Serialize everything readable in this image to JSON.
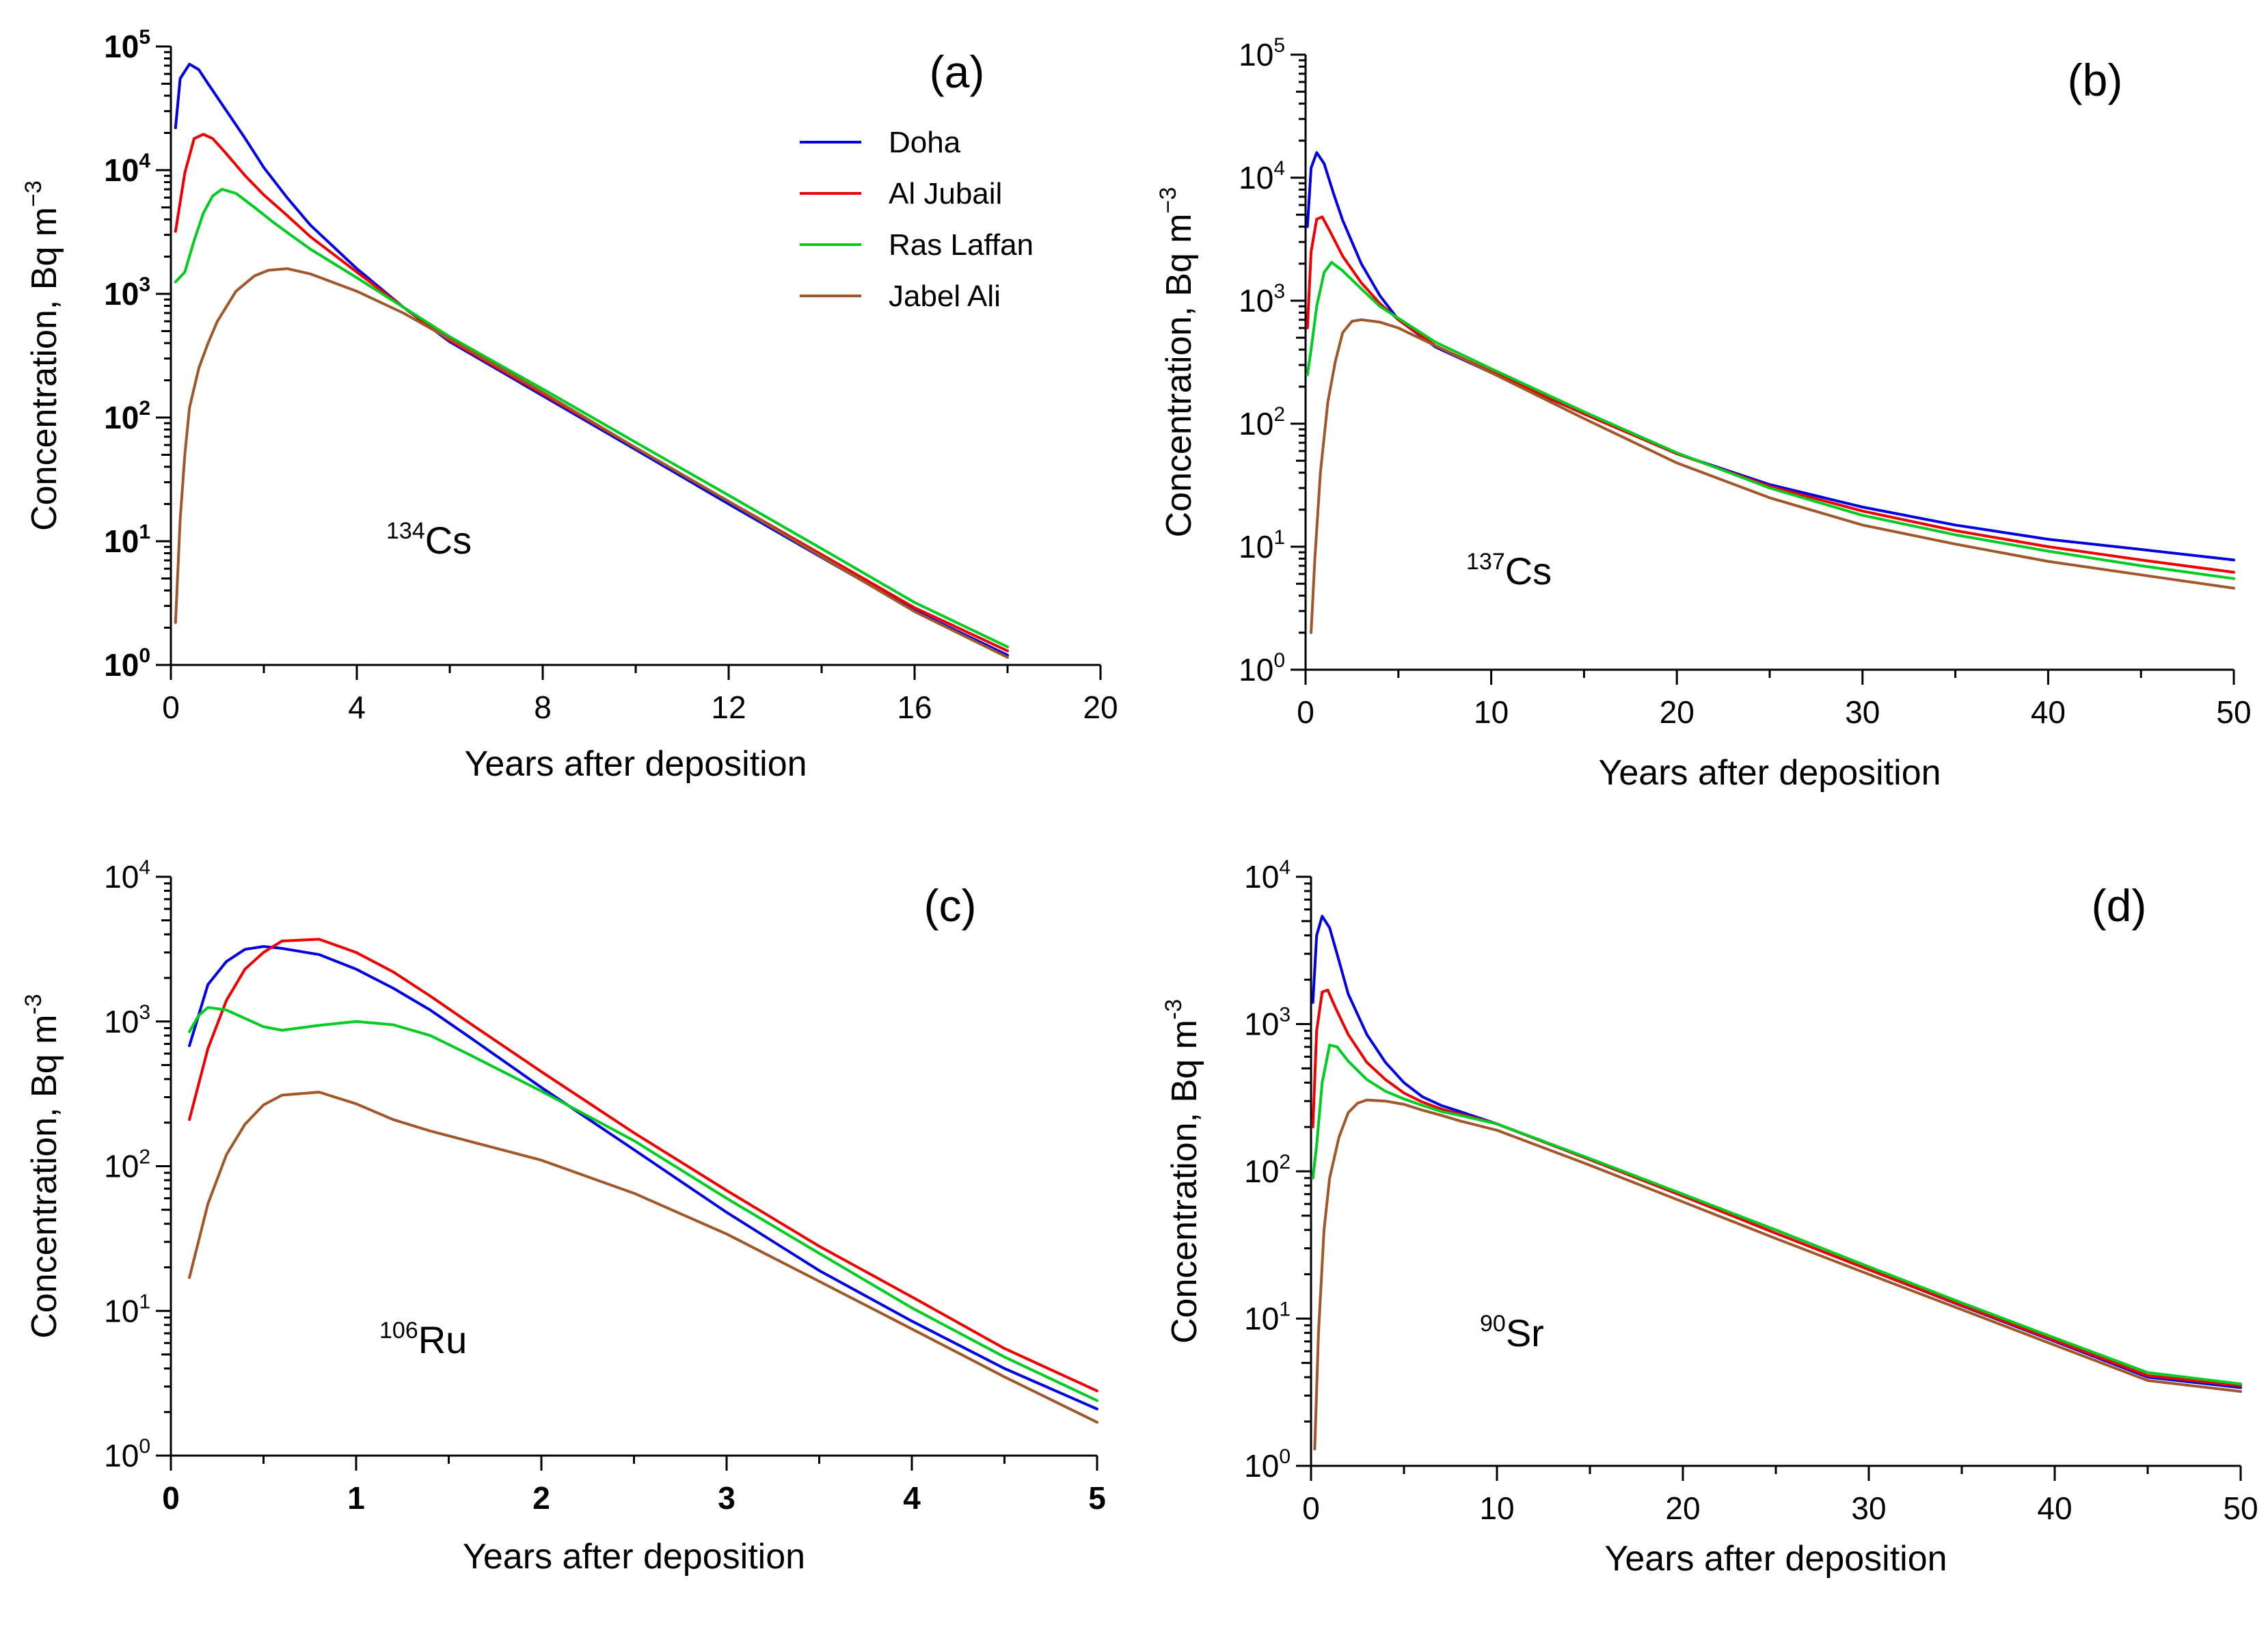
{
  "legend": [
    "Doha",
    "Al Jubail",
    "Ras Laffan",
    "Jabel Ali"
  ],
  "colors": {
    "Doha": "#0000e0",
    "Al Jubail": "#ee0000",
    "Ras Laffan": "#00cc22",
    "Jabel Ali": "#a0572a"
  },
  "chart_data": [
    {
      "type": "line",
      "panel": "(a)",
      "isotope_mass": "134",
      "isotope_symbol": "Cs",
      "xlabel": "Years after deposition",
      "ylabel": "Concentration, Bq m",
      "ylabel_sup": "−3",
      "xlim": [
        0,
        20
      ],
      "xticks": [
        0,
        4,
        8,
        12,
        16,
        20
      ],
      "ylog": true,
      "ylim": [
        1,
        100000
      ],
      "series": [
        {
          "name": "Doha",
          "x": [
            0.1,
            0.2,
            0.4,
            0.6,
            0.8,
            1.2,
            1.6,
            2.0,
            2.5,
            3,
            4,
            5,
            6,
            8,
            10,
            12,
            14,
            16,
            18
          ],
          "y": [
            22000,
            55000,
            72000,
            65000,
            50000,
            30000,
            18000,
            10500,
            6000,
            3600,
            1600,
            780,
            410,
            150,
            55,
            20,
            7.4,
            2.75,
            1.2
          ]
        },
        {
          "name": "Al Jubail",
          "x": [
            0.1,
            0.3,
            0.5,
            0.7,
            0.9,
            1.2,
            1.6,
            2.0,
            2.5,
            3,
            4,
            5,
            6,
            8,
            10,
            12,
            14,
            16,
            18
          ],
          "y": [
            3200,
            9500,
            18000,
            19500,
            18000,
            13500,
            9000,
            6300,
            4300,
            2900,
            1500,
            780,
            420,
            155,
            57,
            21,
            7.8,
            2.9,
            1.3
          ]
        },
        {
          "name": "Ras Laffan",
          "x": [
            0.1,
            0.3,
            0.5,
            0.7,
            0.9,
            1.1,
            1.4,
            1.8,
            2.2,
            2.6,
            3,
            4,
            5,
            6,
            8,
            10,
            12,
            14,
            16,
            18
          ],
          "y": [
            1250,
            1500,
            2700,
            4500,
            6200,
            7000,
            6500,
            5000,
            3800,
            2950,
            2300,
            1350,
            780,
            450,
            170,
            63,
            23.5,
            8.7,
            3.2,
            1.4
          ]
        },
        {
          "name": "Jabel Ali",
          "x": [
            0.1,
            0.2,
            0.3,
            0.4,
            0.6,
            0.8,
            1.0,
            1.4,
            1.8,
            2.1,
            2.5,
            3,
            4,
            5,
            6,
            8,
            10,
            12,
            14,
            16,
            18
          ],
          "y": [
            2.2,
            15,
            50,
            120,
            250,
            400,
            600,
            1050,
            1400,
            1550,
            1600,
            1450,
            1050,
            700,
            430,
            160,
            57,
            21,
            7.5,
            2.7,
            1.15
          ]
        }
      ]
    },
    {
      "type": "line",
      "panel": "(b)",
      "isotope_mass": "137",
      "isotope_symbol": "Cs",
      "xlabel": "Years after deposition",
      "ylabel": "Concentration, Bq m",
      "ylabel_sup": "−3",
      "xlim": [
        0,
        50
      ],
      "xticks": [
        0,
        10,
        20,
        30,
        40,
        50
      ],
      "ylog": true,
      "ylim": [
        1,
        100000
      ],
      "series": [
        {
          "name": "Doha",
          "x": [
            0.1,
            0.3,
            0.6,
            1.0,
            1.5,
            2,
            3,
            4,
            5,
            7,
            10,
            15,
            20,
            25,
            30,
            35,
            40,
            45,
            50
          ],
          "y": [
            4000,
            12000,
            16000,
            13000,
            7500,
            4500,
            2000,
            1100,
            700,
            420,
            260,
            120,
            57,
            32,
            21,
            15,
            11.5,
            9.5,
            7.8
          ]
        },
        {
          "name": "Al Jubail",
          "x": [
            0.1,
            0.3,
            0.6,
            0.9,
            1.3,
            2,
            3,
            4,
            5,
            7,
            10,
            15,
            20,
            25,
            30,
            35,
            40,
            45,
            50
          ],
          "y": [
            600,
            2500,
            4600,
            4800,
            3700,
            2300,
            1400,
            950,
            700,
            430,
            265,
            120,
            57,
            31,
            19.5,
            13.5,
            10,
            7.8,
            6.2
          ]
        },
        {
          "name": "Ras Laffan",
          "x": [
            0.1,
            0.3,
            0.6,
            1.0,
            1.4,
            2,
            3,
            4,
            5,
            7,
            10,
            15,
            20,
            25,
            30,
            35,
            40,
            45,
            50
          ],
          "y": [
            250,
            400,
            900,
            1700,
            2050,
            1750,
            1250,
            900,
            720,
            460,
            280,
            125,
            58,
            30,
            18,
            12.5,
            9.2,
            7,
            5.5
          ]
        },
        {
          "name": "Jabel Ali",
          "x": [
            0.3,
            0.5,
            0.8,
            1.2,
            1.6,
            2.0,
            2.5,
            3.0,
            4,
            5,
            7,
            10,
            15,
            20,
            25,
            30,
            35,
            40,
            45,
            50
          ],
          "y": [
            2.0,
            8,
            40,
            150,
            320,
            550,
            680,
            700,
            670,
            600,
            430,
            260,
            110,
            48,
            25,
            15,
            10.5,
            7.6,
            5.9,
            4.6
          ]
        }
      ]
    },
    {
      "type": "line",
      "panel": "(c)",
      "isotope_mass": "106",
      "isotope_symbol": "Ru",
      "xlabel": "Years after deposition",
      "ylabel": "Concentration, Bq m",
      "ylabel_sup": "-3",
      "xlim": [
        0,
        5
      ],
      "xticks": [
        0,
        1,
        2,
        3,
        4,
        5
      ],
      "ylog": true,
      "ylim": [
        1,
        10000
      ],
      "series": [
        {
          "name": "Doha",
          "x": [
            0.1,
            0.2,
            0.3,
            0.4,
            0.5,
            0.6,
            0.8,
            1.0,
            1.2,
            1.4,
            1.6,
            2.0,
            2.5,
            3.0,
            3.5,
            4.0,
            4.5,
            5.0
          ],
          "y": [
            680,
            1800,
            2600,
            3150,
            3300,
            3200,
            2900,
            2300,
            1700,
            1200,
            800,
            350,
            130,
            48,
            19,
            8.5,
            4,
            2.1
          ]
        },
        {
          "name": "Al Jubail",
          "x": [
            0.1,
            0.2,
            0.3,
            0.4,
            0.5,
            0.6,
            0.8,
            1.0,
            1.2,
            1.4,
            1.6,
            2.0,
            2.5,
            3.0,
            3.5,
            4.0,
            4.5,
            5.0
          ],
          "y": [
            210,
            650,
            1400,
            2300,
            3000,
            3600,
            3700,
            3000,
            2200,
            1500,
            1000,
            450,
            170,
            68,
            28,
            12.5,
            5.5,
            2.8
          ]
        },
        {
          "name": "Ras Laffan",
          "x": [
            0.1,
            0.15,
            0.2,
            0.3,
            0.4,
            0.5,
            0.6,
            0.8,
            1.0,
            1.2,
            1.4,
            1.6,
            2.0,
            2.5,
            3.0,
            3.5,
            4.0,
            4.5,
            5.0
          ],
          "y": [
            850,
            1100,
            1250,
            1200,
            1050,
            920,
            870,
            940,
            1000,
            950,
            800,
            600,
            330,
            150,
            60,
            25,
            10.5,
            4.8,
            2.4
          ]
        },
        {
          "name": "Jabel Ali",
          "x": [
            0.1,
            0.2,
            0.3,
            0.4,
            0.5,
            0.6,
            0.8,
            1.0,
            1.2,
            1.4,
            1.6,
            2.0,
            2.5,
            3.0,
            3.5,
            4.0,
            4.5,
            5.0
          ],
          "y": [
            17,
            55,
            120,
            195,
            265,
            310,
            325,
            270,
            210,
            175,
            150,
            110,
            65,
            34,
            16,
            7.5,
            3.5,
            1.7
          ]
        }
      ]
    },
    {
      "type": "line",
      "panel": "(d)",
      "isotope_mass": "90",
      "isotope_symbol": "Sr",
      "xlabel": "Years after deposition",
      "ylabel": "Concentration, Bq m",
      "ylabel_sup": "-3",
      "xlim": [
        0,
        50
      ],
      "xticks": [
        0,
        10,
        20,
        30,
        40,
        50
      ],
      "ylog": true,
      "ylim": [
        1,
        10000
      ],
      "series": [
        {
          "name": "Doha",
          "x": [
            0.1,
            0.3,
            0.6,
            1.0,
            1.5,
            2,
            3,
            4,
            5,
            6,
            7,
            8,
            10,
            15,
            20,
            25,
            30,
            35,
            40,
            45,
            50
          ],
          "y": [
            1400,
            4000,
            5400,
            4500,
            2700,
            1600,
            850,
            550,
            400,
            320,
            280,
            255,
            210,
            120,
            68,
            38,
            21.5,
            12.2,
            7.0,
            4.0,
            3.4
          ]
        },
        {
          "name": "Al Jubail",
          "x": [
            0.1,
            0.3,
            0.6,
            0.9,
            1.3,
            2,
            3,
            4,
            5,
            6,
            7,
            8,
            10,
            15,
            20,
            25,
            30,
            35,
            40,
            45,
            50
          ],
          "y": [
            200,
            900,
            1650,
            1700,
            1300,
            850,
            550,
            420,
            340,
            295,
            265,
            245,
            210,
            120,
            68,
            38,
            21.5,
            12.3,
            7.1,
            4.1,
            3.5
          ]
        },
        {
          "name": "Ras Laffan",
          "x": [
            0.1,
            0.3,
            0.6,
            1.0,
            1.4,
            2,
            3,
            4,
            5,
            6,
            7,
            8,
            10,
            15,
            20,
            25,
            30,
            35,
            40,
            45,
            50
          ],
          "y": [
            90,
            150,
            400,
            720,
            700,
            560,
            420,
            350,
            310,
            280,
            255,
            240,
            210,
            122,
            70,
            40,
            22.5,
            12.8,
            7.4,
            4.3,
            3.6
          ]
        },
        {
          "name": "Jabel Ali",
          "x": [
            0.2,
            0.4,
            0.7,
            1.0,
            1.5,
            2.0,
            2.5,
            3.0,
            4,
            5,
            6,
            7,
            8,
            10,
            15,
            20,
            25,
            30,
            35,
            40,
            45,
            50
          ],
          "y": [
            1.3,
            8,
            40,
            90,
            170,
            250,
            290,
            305,
            300,
            285,
            260,
            240,
            220,
            190,
            110,
            62,
            35,
            20,
            11.5,
            6.6,
            3.8,
            3.2
          ]
        }
      ]
    }
  ]
}
